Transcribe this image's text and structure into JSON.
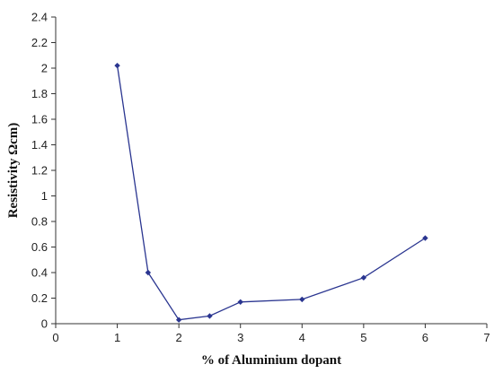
{
  "chart_data": {
    "type": "line",
    "title": "",
    "xlabel": "% of Aluminium dopant",
    "ylabel": "Resistivity  Ωcm)",
    "xlim": [
      0,
      7
    ],
    "ylim": [
      0,
      2.4
    ],
    "x_ticks": [
      "0",
      "1",
      "2",
      "3",
      "4",
      "5",
      "6",
      "7"
    ],
    "y_ticks": [
      "0",
      "0.2",
      "0.4",
      "0.6",
      "0.8",
      "1",
      "1.2",
      "1.4",
      "1.6",
      "1.8",
      "2",
      "2.2",
      "2.4"
    ],
    "grid": false,
    "legend": "none",
    "series": [
      {
        "color": "#2a3590",
        "x": [
          1,
          1.5,
          2,
          2.5,
          3,
          4,
          5,
          6
        ],
        "y": [
          2.02,
          0.4,
          0.03,
          0.06,
          0.17,
          0.19,
          0.36,
          0.67
        ]
      }
    ]
  }
}
